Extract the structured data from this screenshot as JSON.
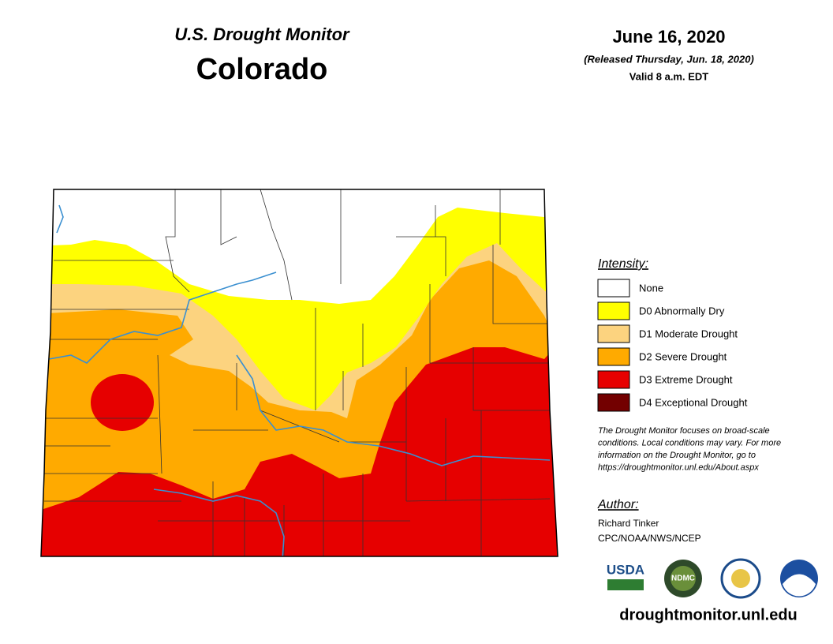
{
  "header": {
    "title": "U.S. Drought Monitor",
    "state": "Colorado",
    "date": "June 16, 2020",
    "released": "(Released Thursday, Jun. 18, 2020)",
    "valid": "Valid 8 a.m. EDT"
  },
  "legend": {
    "title": "Intensity:",
    "items": [
      {
        "label": "None",
        "color": "#ffffff"
      },
      {
        "label": "D0 Abnormally Dry",
        "color": "#ffff00"
      },
      {
        "label": "D1 Moderate Drought",
        "color": "#fcd37f"
      },
      {
        "label": "D2 Severe Drought",
        "color": "#ffaa00"
      },
      {
        "label": "D3 Extreme Drought",
        "color": "#e60000"
      },
      {
        "label": "D4 Exceptional Drought",
        "color": "#730000"
      }
    ]
  },
  "note": [
    "The Drought Monitor focuses on broad-scale",
    "conditions. Local conditions may vary. For more",
    "information on the Drought Monitor, go to",
    "https://droughtmonitor.unl.edu/About.aspx"
  ],
  "author": {
    "heading": "Author:",
    "name": "Richard Tinker",
    "org": "CPC/NOAA/NWS/NCEP"
  },
  "logos": [
    "USDA",
    "NDMC"
  ],
  "url": "droughtmonitor.unl.edu"
}
